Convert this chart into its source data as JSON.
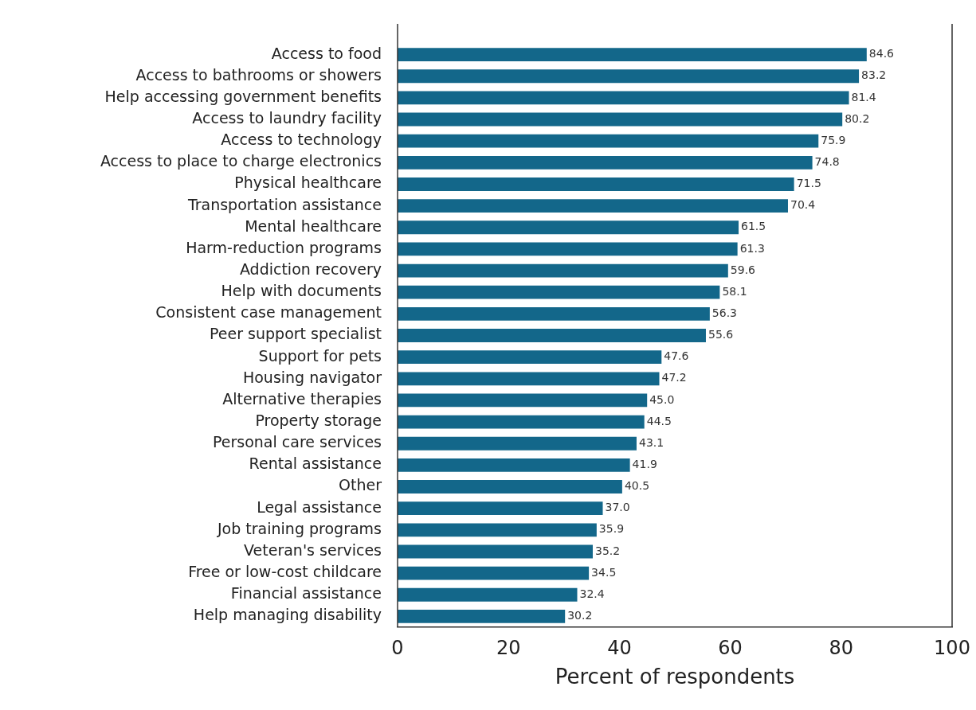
{
  "chart_data": {
    "type": "bar",
    "orientation": "horizontal",
    "xlabel": "Percent of respondents",
    "categories": [
      "Access to food",
      "Access to bathrooms or showers",
      "Help accessing government benefits",
      "Access to laundry facility",
      "Access to technology",
      "Access to place to charge electronics",
      "Physical healthcare",
      "Transportation assistance",
      "Mental healthcare",
      "Harm-reduction programs",
      "Addiction recovery",
      "Help with documents",
      "Consistent case management",
      "Peer support specialist",
      "Support for pets",
      "Housing navigator",
      "Alternative therapies",
      "Property storage",
      "Personal care services",
      "Rental assistance",
      "Other",
      "Legal assistance",
      "Job training programs",
      "Veteran's services",
      "Free or low-cost childcare",
      "Financial assistance",
      "Help managing disability"
    ],
    "values": [
      84.6,
      83.2,
      81.4,
      80.2,
      75.9,
      74.8,
      71.5,
      70.4,
      61.5,
      61.3,
      59.6,
      58.1,
      56.3,
      55.6,
      47.6,
      47.2,
      45.0,
      44.5,
      43.1,
      41.9,
      40.5,
      37.0,
      35.9,
      35.2,
      34.5,
      32.4,
      30.2
    ],
    "value_labels": [
      "84.6",
      "83.2",
      "81.4",
      "80.2",
      "75.9",
      "74.8",
      "71.5",
      "70.4",
      "61.5",
      "61.3",
      "59.6",
      "58.1",
      "56.3",
      "55.6",
      "47.6",
      "47.2",
      "45.0",
      "44.5",
      "43.1",
      "41.9",
      "40.5",
      "37.0",
      "35.9",
      "35.2",
      "34.5",
      "32.4",
      "30.2"
    ],
    "color": "#13678a",
    "xlim": [
      0,
      100
    ],
    "xticks": [
      0,
      20,
      40,
      60,
      80,
      100
    ],
    "grid": false,
    "legend": false
  }
}
